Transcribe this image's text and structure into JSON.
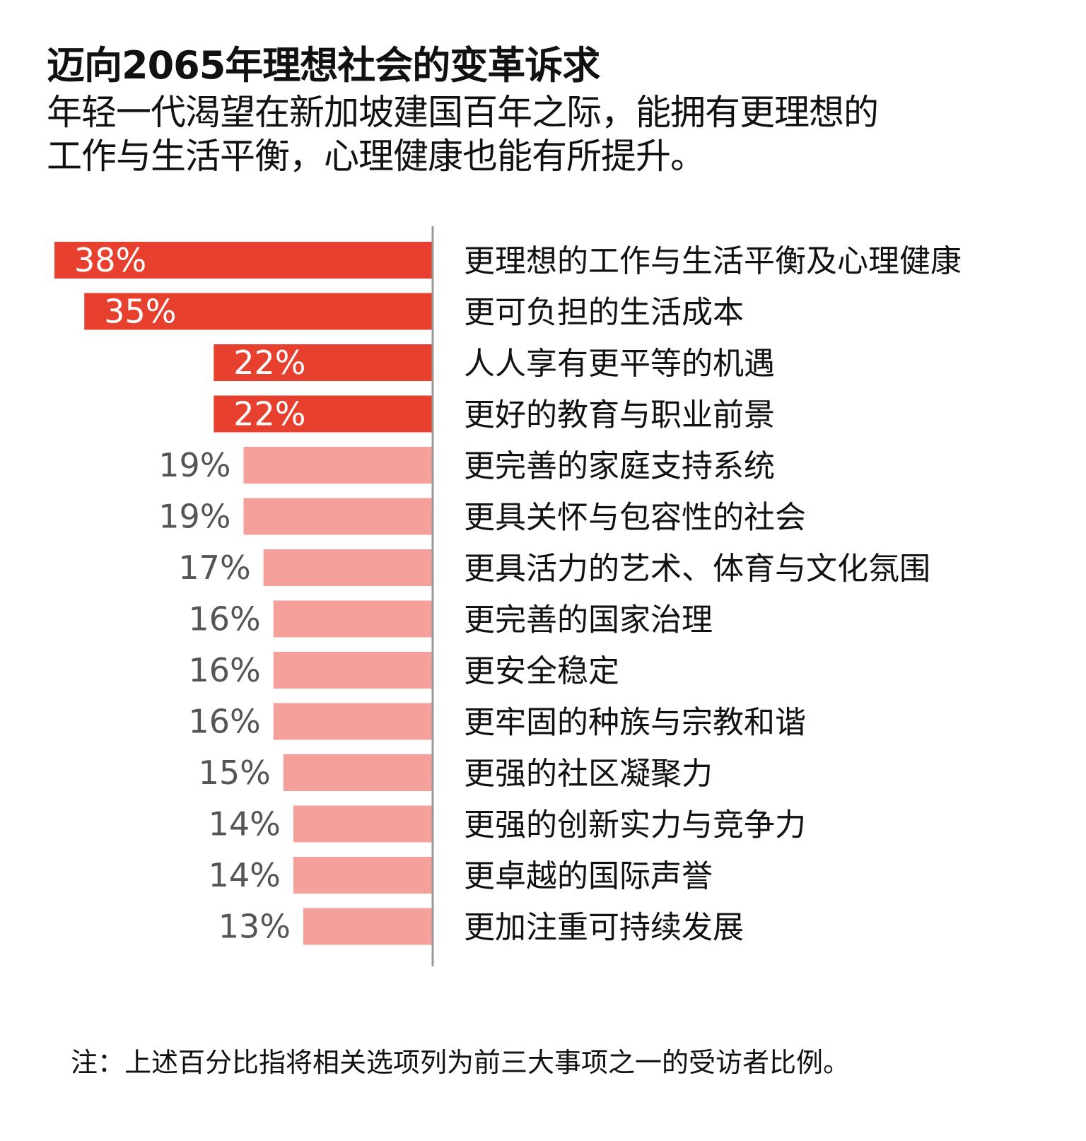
{
  "title": "迈向2065年理想社会的变革诉求",
  "subtitle": {
    "line1": "年轻一代渴望在新加坡建国百年之际，能拥有更理想的",
    "line2": "工作与生活平衡，心理健康也能有所提升。"
  },
  "note": "注：上述百分比指将相关选项列为前三大事项之一的受访者比例。",
  "colors": {
    "highlight": "#e8402f",
    "normal": "#f5a09a",
    "axis": "#999999",
    "label_dark": "#555555"
  },
  "chart_data": {
    "type": "bar",
    "orientation": "horizontal",
    "categories": [
      "更理想的工作与生活平衡及心理健康",
      "更可负担的生活成本",
      "人人享有更平等的机遇",
      "更好的教育与职业前景",
      "更完善的家庭支持系统",
      "更具关怀与包容性的社会",
      "更具活力的艺术、体育与文化氛围",
      "更完善的国家治理",
      "更安全稳定",
      "更牢固的种族与宗教和谐",
      "更强的社区凝聚力",
      "更强的创新实力与竞争力",
      "更卓越的国际声誉",
      "更加注重可持续发展"
    ],
    "values": [
      38,
      35,
      22,
      22,
      19,
      19,
      17,
      16,
      16,
      16,
      15,
      14,
      14,
      13
    ],
    "value_labels": [
      "38%",
      "35%",
      "22%",
      "22%",
      "19%",
      "19%",
      "17%",
      "16%",
      "16%",
      "16%",
      "15%",
      "14%",
      "14%",
      "13%"
    ],
    "highlighted": [
      true,
      true,
      true,
      true,
      false,
      false,
      false,
      false,
      false,
      false,
      false,
      false,
      false,
      false
    ],
    "unit": "%",
    "xlim": [
      0,
      38
    ],
    "grid": false,
    "bars_extend": "leftward from axis"
  }
}
